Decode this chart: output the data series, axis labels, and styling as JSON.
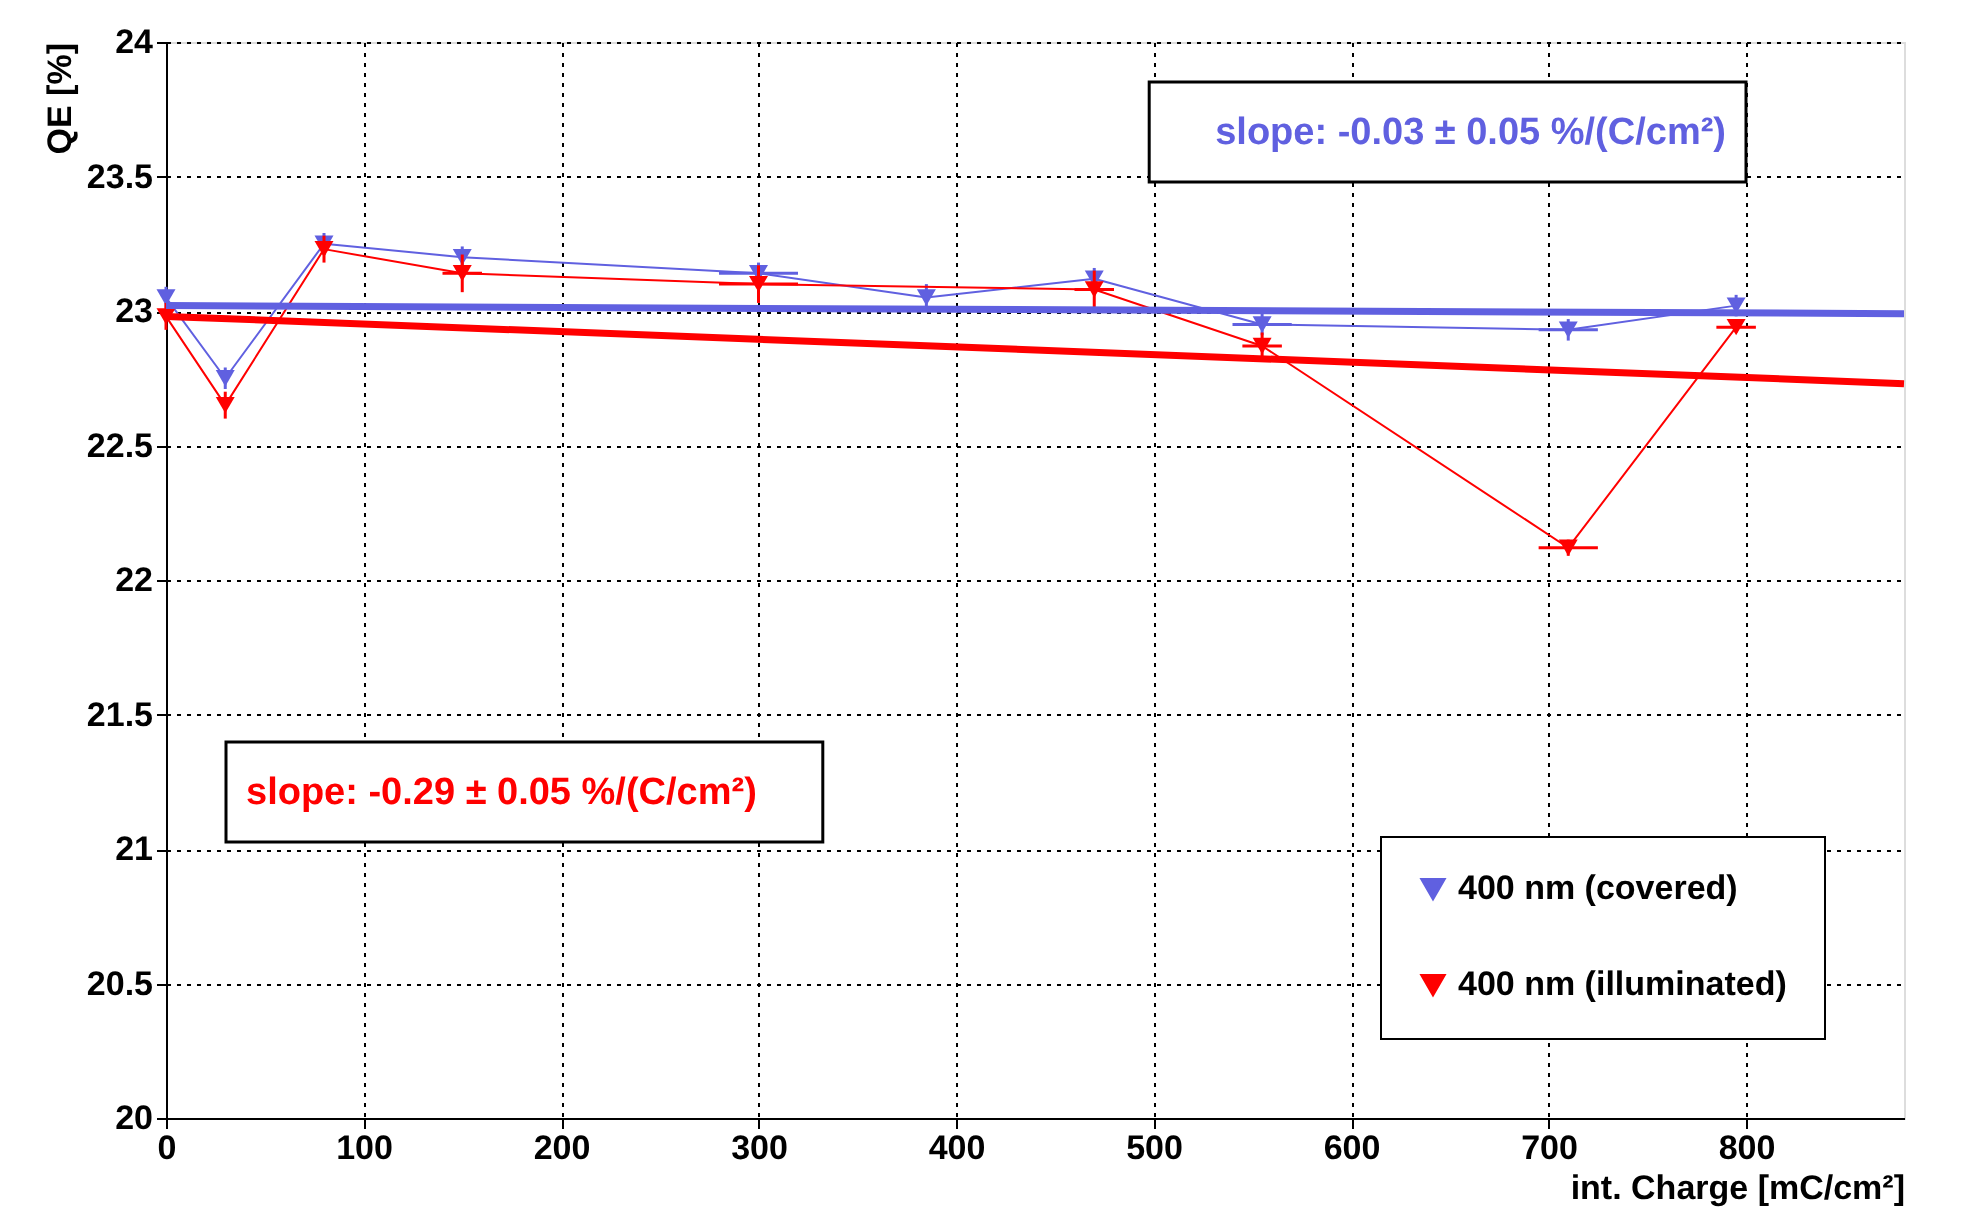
{
  "chart_data": {
    "type": "line",
    "xlabel": "int. Charge [mC/cm²]",
    "ylabel": "QE [%]",
    "xlim": [
      0,
      880
    ],
    "xticks": [
      0,
      100,
      200,
      300,
      400,
      500,
      600,
      700,
      800
    ],
    "ylim": [
      20,
      24
    ],
    "yticks": [
      20,
      20.5,
      21,
      21.5,
      22,
      22.5,
      23,
      23.5,
      24
    ],
    "grid": true,
    "legend": "bottom right",
    "marker": "triangle",
    "series": [
      {
        "name": "400 nm (covered)",
        "color": "#6060e0",
        "x": [
          0,
          30,
          80,
          150,
          300,
          385,
          470,
          555,
          710,
          795
        ],
        "values": [
          23.05,
          22.75,
          23.25,
          23.2,
          23.14,
          23.05,
          23.12,
          22.95,
          22.93,
          23.02
        ],
        "errors": [
          0.04,
          0.04,
          0.04,
          0.04,
          0.04,
          0.05,
          0.04,
          0.04,
          0.04,
          0.04
        ],
        "xerrors": [
          null,
          null,
          null,
          null,
          20,
          null,
          null,
          15,
          15,
          null
        ]
      },
      {
        "name": "400 nm (illuminated)",
        "color": "#ff0000",
        "x": [
          0,
          30,
          80,
          150,
          300,
          470,
          555,
          710,
          795
        ],
        "values": [
          22.98,
          22.65,
          23.23,
          23.14,
          23.1,
          23.08,
          22.87,
          22.12,
          22.94
        ],
        "errors": [
          0.05,
          0.05,
          0.05,
          0.07,
          0.07,
          0.07,
          0.05,
          0.03,
          0.02
        ],
        "xerrors": [
          null,
          null,
          null,
          10,
          20,
          10,
          10,
          15,
          10
        ]
      },
      {
        "type": "line",
        "marker": "none",
        "color": "#6060e0",
        "x": [
          0,
          880
        ],
        "values": [
          23.02,
          22.99
        ]
      },
      {
        "type": "line",
        "marker": "none",
        "color": "#ff0000",
        "x": [
          0,
          880
        ],
        "values": [
          22.98,
          22.73
        ]
      }
    ],
    "annotations": [
      "slope: -0.03 ± 0.05 %/(C/cm²)",
      "slope: -0.29 ± 0.05 %/(C/cm²)"
    ]
  }
}
